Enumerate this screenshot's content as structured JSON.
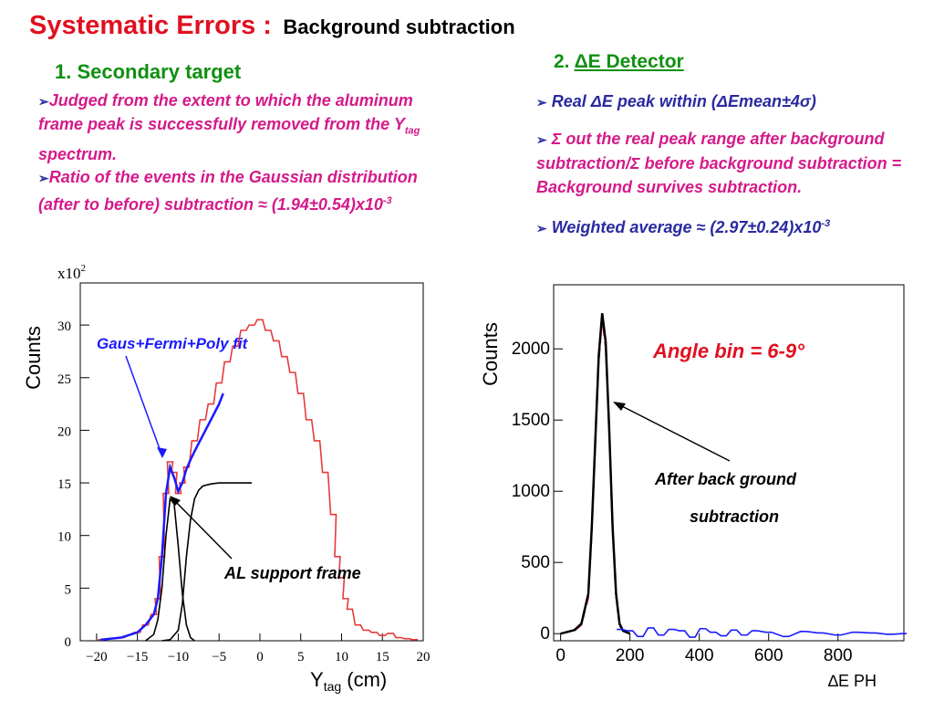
{
  "title": {
    "main": "Systematic Errors :",
    "sub": "Background subtraction"
  },
  "section1": {
    "heading": "1. Secondary target",
    "bullet1": "Judged from the extent to which the aluminum frame peak is successfully removed from the Y",
    "bullet1_sub": "tag",
    "bullet1_end": " spectrum.",
    "bullet2": "Ratio of the events in the Gaussian distribution (after to before) subtraction ",
    "bullet2_approx": "≈",
    "bullet2_value": " (1.94±0.54)x10",
    "bullet2_exp": "-3"
  },
  "section2": {
    "num": "2.",
    "heading": "ΔE  Detector",
    "bullet1_a": "Real ",
    "bullet1_b": "ΔE peak within (ΔEmean±4σ)",
    "bullet2": "Σ out the real peak range after background subtraction/Σ before background subtraction = Background survives subtraction.",
    "bullet3_a": "Weighted average ",
    "bullet3_approx": "≈",
    "bullet3_b": " (2.97±0.24)x10",
    "bullet3_exp": "-3"
  },
  "colors": {
    "red": "#e01020",
    "green": "#109010",
    "magenta": "#d41a8a",
    "navy": "#2a2aa0",
    "blue": "#1a1aff"
  },
  "chart_data": [
    {
      "type": "line",
      "multiplier": "x10",
      "multiplier_exp": "2",
      "ylabel": "Counts",
      "xlabel": "Y",
      "xlabel_sub": "tag",
      "xlabel_unit": " (cm)",
      "xlim": [
        -22,
        20
      ],
      "ylim": [
        0,
        34
      ],
      "xticks": [
        -20,
        -15,
        -10,
        -5,
        0,
        5,
        10,
        15,
        20
      ],
      "xtick_labels": [
        "−20",
        "−15",
        "−10",
        "−5",
        "0",
        "5",
        "10",
        "15",
        "20"
      ],
      "yticks": [
        0,
        5,
        10,
        15,
        20,
        25,
        30
      ],
      "ytick_labels": [
        "0",
        "5",
        "10",
        "15",
        "20",
        "25",
        "30"
      ],
      "annotations": [
        "Gaus+Fermi+Poly fit",
        "AL support frame"
      ],
      "series": [
        {
          "role": "data",
          "color": "#e83a3a",
          "x": [
            -19.5,
            -17,
            -15,
            -14,
            -13,
            -12.5,
            -12,
            -11.5,
            -11,
            -10.5,
            -10,
            -9.5,
            -9,
            -8,
            -7,
            -6,
            -5,
            -4,
            -3,
            -2,
            -1,
            0,
            1,
            2,
            3,
            4,
            5,
            6,
            7,
            8,
            9,
            9.5,
            10,
            10.5,
            11,
            12,
            13,
            14,
            15,
            16,
            17,
            18,
            19
          ],
          "y": [
            0.1,
            0.3,
            0.8,
            1.5,
            2.5,
            4,
            8,
            14,
            17,
            16,
            14,
            15,
            16.5,
            19,
            21,
            22.5,
            24.5,
            26.5,
            28,
            29.5,
            30,
            30.5,
            29.5,
            28.5,
            27,
            25.5,
            23.5,
            21,
            19,
            16,
            12,
            8,
            6,
            4,
            3,
            1.5,
            1,
            0.8,
            0.5,
            0.7,
            0.3,
            0.2,
            0.1
          ]
        },
        {
          "role": "fit",
          "color": "#1a1aff",
          "x": [
            -19.5,
            -17,
            -15,
            -14,
            -13,
            -12.5,
            -12,
            -11.5,
            -11,
            -10.5,
            -10,
            -9.5,
            -9,
            -8.5,
            -8,
            -7,
            -6,
            -5,
            -4.5
          ],
          "y": [
            0.1,
            0.3,
            0.8,
            1.5,
            2.5,
            4,
            8,
            14,
            16.5,
            15.5,
            14.2,
            15,
            16.3,
            17.2,
            18,
            19.5,
            21,
            22.5,
            23.5
          ]
        },
        {
          "role": "gaussian",
          "color": "#000000",
          "x": [
            -14,
            -13,
            -12.5,
            -12,
            -11.5,
            -11,
            -10.5,
            -10,
            -9.5,
            -9,
            -8.5,
            -8
          ],
          "y": [
            0,
            0.6,
            2,
            5,
            10,
            13.5,
            13,
            9,
            4.5,
            1.5,
            0.3,
            0
          ]
        },
        {
          "role": "fermi",
          "color": "#000000",
          "x": [
            -12,
            -11,
            -10,
            -9.5,
            -9,
            -8.5,
            -8,
            -7.5,
            -7,
            -6,
            -5,
            -4,
            -3,
            -1
          ],
          "y": [
            0,
            0.1,
            1,
            3.5,
            8,
            11.5,
            13.5,
            14.3,
            14.7,
            14.9,
            15,
            15,
            15,
            15
          ]
        }
      ]
    },
    {
      "type": "line",
      "ylabel": "Counts",
      "xlabel": "∆E PH",
      "xlim": [
        -20,
        990
      ],
      "ylim": [
        -50,
        2450
      ],
      "xticks": [
        0,
        200,
        400,
        600,
        800
      ],
      "xtick_labels": [
        "0",
        "200",
        "400",
        "600",
        "800"
      ],
      "yticks": [
        0,
        500,
        1000,
        1500,
        2000
      ],
      "ytick_labels": [
        "0",
        "500",
        "1000",
        "1500",
        "2000"
      ],
      "annotations": [
        "Angle bin = 6-9°",
        "After back ground",
        "subtraction"
      ],
      "series": [
        {
          "role": "before",
          "color": "#e01020",
          "x": [
            0,
            40,
            60,
            80,
            90,
            100,
            110,
            120,
            130,
            140,
            150,
            160,
            170,
            180,
            200
          ],
          "y": [
            0,
            20,
            60,
            250,
            700,
            1300,
            1900,
            2200,
            2000,
            1400,
            700,
            250,
            60,
            15,
            0
          ]
        },
        {
          "role": "after_fit",
          "color": "#000000",
          "x": [
            0,
            40,
            60,
            80,
            90,
            100,
            110,
            120,
            130,
            140,
            150,
            160,
            170,
            180,
            200
          ],
          "y": [
            0,
            25,
            70,
            280,
            750,
            1350,
            1950,
            2250,
            2050,
            1450,
            750,
            280,
            70,
            20,
            0
          ]
        },
        {
          "role": "after_sub",
          "color": "#1a1aff",
          "x": [
            170,
            200,
            230,
            260,
            290,
            320,
            350,
            380,
            410,
            440,
            470,
            500,
            530,
            560,
            600,
            650,
            700,
            750,
            800,
            850,
            900,
            950,
            990
          ],
          "y": [
            30,
            20,
            -20,
            40,
            -10,
            30,
            20,
            -25,
            35,
            10,
            -15,
            25,
            -10,
            20,
            10,
            -20,
            15,
            5,
            -10,
            10,
            5,
            -5,
            0
          ]
        }
      ]
    }
  ]
}
